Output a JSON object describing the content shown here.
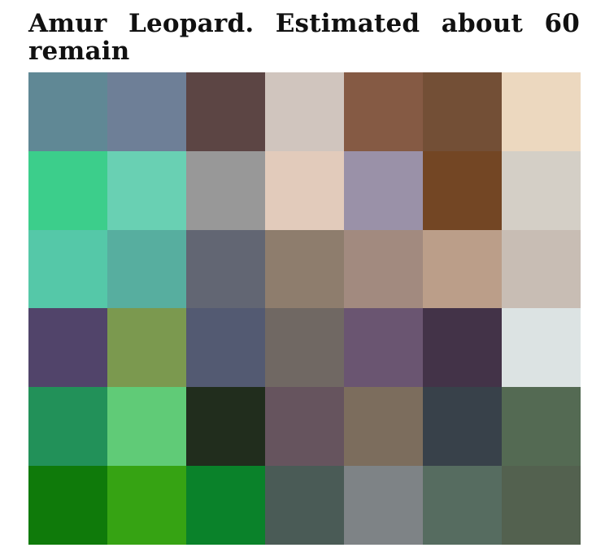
{
  "title": "Amur Leopard. Estimated about 60 remain",
  "grid": {
    "rows": 6,
    "cols": 7,
    "colors": [
      [
        "#608895",
        "#6e7f97",
        "#5c4544",
        "#d0c5be",
        "#855a44",
        "#734f36",
        "#ecd8bf"
      ],
      [
        "#3cce8b",
        "#69d0b3",
        "#989898",
        "#e2cbbb",
        "#9a91a8",
        "#734624",
        "#d4cfc6"
      ],
      [
        "#55c8a8",
        "#57ae9f",
        "#626673",
        "#8e7d6d",
        "#a28a7f",
        "#bb9e89",
        "#c8bdb4"
      ],
      [
        "#51446a",
        "#7b994f",
        "#535a72",
        "#706863",
        "#6a5571",
        "#433348",
        "#dce3e3"
      ],
      [
        "#229159",
        "#60cb77",
        "#212d1d",
        "#66545e",
        "#7c6d5d",
        "#38414a",
        "#546a53"
      ],
      [
        "#0f7a0a",
        "#36a313",
        "#0a822a",
        "#4a5b56",
        "#7e8386",
        "#566c60",
        "#53614f"
      ]
    ]
  }
}
